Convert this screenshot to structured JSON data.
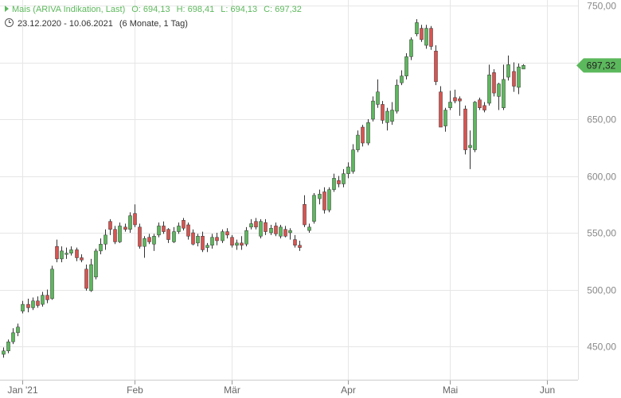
{
  "legend": {
    "instrument": "Mais (ARIVA Indikation, Last)",
    "open": "O: 694,13",
    "high": "H: 698,41",
    "low": "L: 694,13",
    "close": "C: 697,32",
    "range": "23.12.2020 - 10.06.2021",
    "period": "(6 Monate, 1 Tag)"
  },
  "chart_data": {
    "type": "candlestick",
    "title": "",
    "xlabel": "",
    "ylabel": "",
    "ylim": [
      420,
      750
    ],
    "yticks": [
      "450,00",
      "500,00",
      "550,00",
      "600,00",
      "650,00",
      "700,00",
      "750,00"
    ],
    "ytick_values": [
      450,
      500,
      550,
      600,
      650,
      700,
      750
    ],
    "x_months": [
      "Jan '21",
      "Feb",
      "Mär",
      "Apr",
      "Mai",
      "Jun"
    ],
    "x_month_index": [
      4,
      27,
      47,
      71,
      92,
      112
    ],
    "last_price_label": "697,32",
    "last_price": 697.32,
    "colors": {
      "up": "#5cb85c",
      "down": "#d9534f",
      "grid": "#e6e6e6",
      "tag": "#5cb85c"
    },
    "candles": [
      {
        "o": 443,
        "h": 449,
        "l": 440,
        "c": 446
      },
      {
        "o": 446,
        "h": 456,
        "l": 444,
        "c": 454
      },
      {
        "o": 454,
        "h": 466,
        "l": 452,
        "c": 462
      },
      {
        "o": 462,
        "h": 470,
        "l": 459,
        "c": 467
      },
      {
        "o": 481,
        "h": 490,
        "l": 479,
        "c": 487
      },
      {
        "o": 487,
        "h": 492,
        "l": 480,
        "c": 484
      },
      {
        "o": 484,
        "h": 493,
        "l": 482,
        "c": 490
      },
      {
        "o": 490,
        "h": 494,
        "l": 484,
        "c": 486
      },
      {
        "o": 487,
        "h": 498,
        "l": 485,
        "c": 495
      },
      {
        "o": 495,
        "h": 500,
        "l": 488,
        "c": 491
      },
      {
        "o": 492,
        "h": 521,
        "l": 491,
        "c": 518
      },
      {
        "o": 538,
        "h": 544,
        "l": 524,
        "c": 527
      },
      {
        "o": 527,
        "h": 538,
        "l": 524,
        "c": 534
      },
      {
        "o": 531,
        "h": 537,
        "l": 527,
        "c": 532
      },
      {
        "o": 532,
        "h": 538,
        "l": 530,
        "c": 535
      },
      {
        "o": 535,
        "h": 537,
        "l": 525,
        "c": 528
      },
      {
        "o": 528,
        "h": 531,
        "l": 524,
        "c": 526
      },
      {
        "o": 518,
        "h": 522,
        "l": 499,
        "c": 501
      },
      {
        "o": 499,
        "h": 527,
        "l": 498,
        "c": 522
      },
      {
        "o": 511,
        "h": 536,
        "l": 509,
        "c": 534
      },
      {
        "o": 534,
        "h": 545,
        "l": 531,
        "c": 540
      },
      {
        "o": 540,
        "h": 553,
        "l": 535,
        "c": 548
      },
      {
        "o": 560,
        "h": 562,
        "l": 548,
        "c": 553
      },
      {
        "o": 553,
        "h": 556,
        "l": 540,
        "c": 542
      },
      {
        "o": 542,
        "h": 559,
        "l": 541,
        "c": 556
      },
      {
        "o": 555,
        "h": 558,
        "l": 551,
        "c": 553
      },
      {
        "o": 553,
        "h": 568,
        "l": 550,
        "c": 565
      },
      {
        "o": 567,
        "h": 575,
        "l": 555,
        "c": 557
      },
      {
        "o": 555,
        "h": 558,
        "l": 536,
        "c": 538
      },
      {
        "o": 538,
        "h": 547,
        "l": 528,
        "c": 545
      },
      {
        "o": 546,
        "h": 549,
        "l": 540,
        "c": 542
      },
      {
        "o": 540,
        "h": 549,
        "l": 534,
        "c": 547
      },
      {
        "o": 548,
        "h": 559,
        "l": 546,
        "c": 556
      },
      {
        "o": 556,
        "h": 560,
        "l": 549,
        "c": 551
      },
      {
        "o": 553,
        "h": 554,
        "l": 541,
        "c": 544
      },
      {
        "o": 542,
        "h": 555,
        "l": 541,
        "c": 551
      },
      {
        "o": 551,
        "h": 559,
        "l": 549,
        "c": 556
      },
      {
        "o": 561,
        "h": 563,
        "l": 552,
        "c": 554
      },
      {
        "o": 557,
        "h": 559,
        "l": 544,
        "c": 547
      },
      {
        "o": 550,
        "h": 553,
        "l": 539,
        "c": 540
      },
      {
        "o": 541,
        "h": 549,
        "l": 538,
        "c": 547
      },
      {
        "o": 547,
        "h": 551,
        "l": 533,
        "c": 535
      },
      {
        "o": 537,
        "h": 541,
        "l": 533,
        "c": 539
      },
      {
        "o": 539,
        "h": 549,
        "l": 536,
        "c": 546
      },
      {
        "o": 546,
        "h": 550,
        "l": 539,
        "c": 543
      },
      {
        "o": 543,
        "h": 553,
        "l": 541,
        "c": 551
      },
      {
        "o": 551,
        "h": 554,
        "l": 545,
        "c": 548
      },
      {
        "o": 546,
        "h": 548,
        "l": 537,
        "c": 539
      },
      {
        "o": 539,
        "h": 544,
        "l": 535,
        "c": 541
      },
      {
        "o": 541,
        "h": 547,
        "l": 535,
        "c": 539
      },
      {
        "o": 540,
        "h": 555,
        "l": 538,
        "c": 552
      },
      {
        "o": 555,
        "h": 562,
        "l": 553,
        "c": 558
      },
      {
        "o": 560,
        "h": 563,
        "l": 553,
        "c": 555
      },
      {
        "o": 547,
        "h": 562,
        "l": 545,
        "c": 560
      },
      {
        "o": 559,
        "h": 562,
        "l": 548,
        "c": 551
      },
      {
        "o": 550,
        "h": 557,
        "l": 548,
        "c": 554
      },
      {
        "o": 556,
        "h": 559,
        "l": 547,
        "c": 549
      },
      {
        "o": 547,
        "h": 557,
        "l": 545,
        "c": 555
      },
      {
        "o": 553,
        "h": 556,
        "l": 546,
        "c": 547
      },
      {
        "o": 550,
        "h": 554,
        "l": 544,
        "c": 552
      },
      {
        "o": 544,
        "h": 548,
        "l": 537,
        "c": 539
      },
      {
        "o": 539,
        "h": 543,
        "l": 534,
        "c": 537
      },
      {
        "o": 575,
        "h": 583,
        "l": 555,
        "c": 557
      },
      {
        "o": 552,
        "h": 558,
        "l": 550,
        "c": 555
      },
      {
        "o": 560,
        "h": 585,
        "l": 558,
        "c": 583
      },
      {
        "o": 580,
        "h": 588,
        "l": 575,
        "c": 584
      },
      {
        "o": 586,
        "h": 590,
        "l": 567,
        "c": 570
      },
      {
        "o": 570,
        "h": 590,
        "l": 568,
        "c": 588
      },
      {
        "o": 588,
        "h": 602,
        "l": 586,
        "c": 598
      },
      {
        "o": 596,
        "h": 600,
        "l": 590,
        "c": 593
      },
      {
        "o": 593,
        "h": 606,
        "l": 590,
        "c": 602
      },
      {
        "o": 602,
        "h": 612,
        "l": 598,
        "c": 608
      },
      {
        "o": 604,
        "h": 628,
        "l": 602,
        "c": 623
      },
      {
        "o": 623,
        "h": 640,
        "l": 621,
        "c": 636
      },
      {
        "o": 643,
        "h": 645,
        "l": 626,
        "c": 629
      },
      {
        "o": 629,
        "h": 650,
        "l": 627,
        "c": 647
      },
      {
        "o": 650,
        "h": 670,
        "l": 648,
        "c": 666
      },
      {
        "o": 663,
        "h": 685,
        "l": 660,
        "c": 674
      },
      {
        "o": 663,
        "h": 666,
        "l": 646,
        "c": 649
      },
      {
        "o": 647,
        "h": 660,
        "l": 640,
        "c": 657
      },
      {
        "o": 648,
        "h": 665,
        "l": 645,
        "c": 658
      },
      {
        "o": 657,
        "h": 685,
        "l": 655,
        "c": 680
      },
      {
        "o": 682,
        "h": 693,
        "l": 680,
        "c": 688
      },
      {
        "o": 688,
        "h": 708,
        "l": 685,
        "c": 705
      },
      {
        "o": 705,
        "h": 722,
        "l": 702,
        "c": 720
      },
      {
        "o": 725,
        "h": 738,
        "l": 723,
        "c": 735
      },
      {
        "o": 730,
        "h": 733,
        "l": 718,
        "c": 720
      },
      {
        "o": 715,
        "h": 733,
        "l": 712,
        "c": 730
      },
      {
        "o": 730,
        "h": 732,
        "l": 711,
        "c": 714
      },
      {
        "o": 710,
        "h": 715,
        "l": 680,
        "c": 683
      },
      {
        "o": 674,
        "h": 679,
        "l": 643,
        "c": 643
      },
      {
        "o": 644,
        "h": 660,
        "l": 639,
        "c": 658
      },
      {
        "o": 660,
        "h": 675,
        "l": 658,
        "c": 665
      },
      {
        "o": 669,
        "h": 676,
        "l": 664,
        "c": 666
      },
      {
        "o": 668,
        "h": 670,
        "l": 653,
        "c": 666
      },
      {
        "o": 659,
        "h": 662,
        "l": 619,
        "c": 623
      },
      {
        "o": 625,
        "h": 640,
        "l": 606,
        "c": 627
      },
      {
        "o": 623,
        "h": 666,
        "l": 621,
        "c": 665
      },
      {
        "o": 667,
        "h": 669,
        "l": 658,
        "c": 660
      },
      {
        "o": 662,
        "h": 665,
        "l": 656,
        "c": 658
      },
      {
        "o": 664,
        "h": 698,
        "l": 662,
        "c": 689
      },
      {
        "o": 691,
        "h": 694,
        "l": 670,
        "c": 673
      },
      {
        "o": 670,
        "h": 682,
        "l": 658,
        "c": 681
      },
      {
        "o": 660,
        "h": 698,
        "l": 658,
        "c": 685
      },
      {
        "o": 687,
        "h": 706,
        "l": 684,
        "c": 698
      },
      {
        "o": 692,
        "h": 700,
        "l": 674,
        "c": 679
      },
      {
        "o": 678,
        "h": 699,
        "l": 672,
        "c": 696
      },
      {
        "o": 694.13,
        "h": 698.41,
        "l": 694.13,
        "c": 697.32
      }
    ]
  }
}
